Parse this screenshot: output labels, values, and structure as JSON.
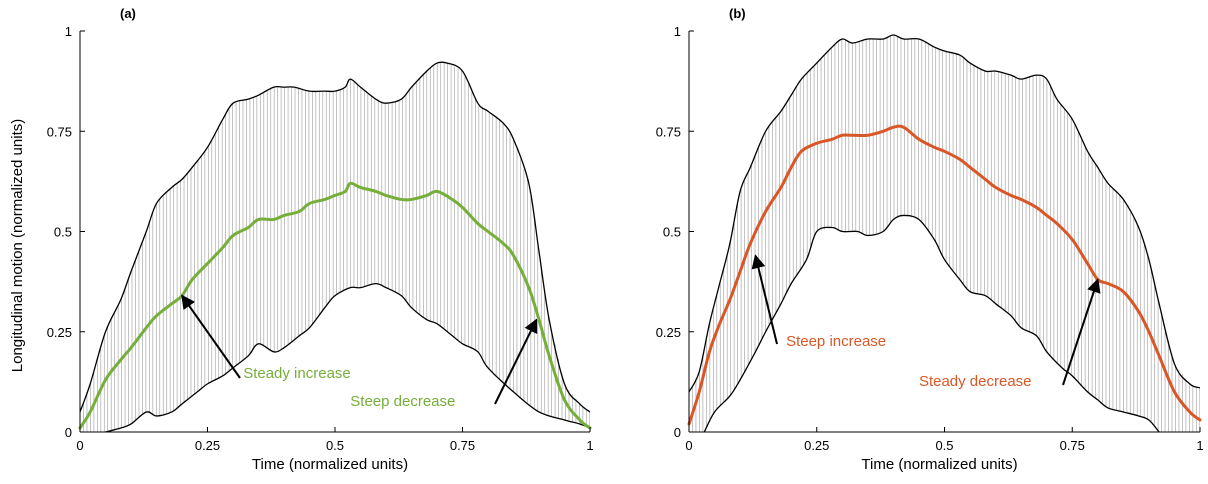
{
  "chart_data": [
    {
      "type": "line",
      "panel_label": "(a)",
      "xlabel": "Time (normalized units)",
      "ylabel": "Longitudinal motion (normalized units)",
      "xlim": [
        0,
        1
      ],
      "ylim": [
        0,
        1
      ],
      "xticks": [
        0,
        0.25,
        0.5,
        0.75,
        1
      ],
      "xtick_labels": [
        "0",
        "0.25",
        "0.5",
        "0.75",
        "1"
      ],
      "yticks": [
        0,
        0.25,
        0.5,
        0.75,
        1
      ],
      "ytick_labels": [
        "0",
        "0.25",
        "0.5",
        "0.75",
        "1"
      ],
      "line_color": "#76ae3a",
      "upper_bound": {
        "x": [
          0,
          0.02,
          0.05,
          0.08,
          0.1,
          0.13,
          0.15,
          0.18,
          0.2,
          0.22,
          0.25,
          0.28,
          0.3,
          0.33,
          0.35,
          0.38,
          0.4,
          0.42,
          0.45,
          0.48,
          0.5,
          0.52,
          0.53,
          0.55,
          0.58,
          0.6,
          0.63,
          0.65,
          0.68,
          0.7,
          0.72,
          0.75,
          0.78,
          0.8,
          0.83,
          0.85,
          0.88,
          0.9,
          0.92,
          0.95,
          0.98,
          1.0
        ],
        "y": [
          0.05,
          0.12,
          0.25,
          0.33,
          0.4,
          0.5,
          0.57,
          0.61,
          0.63,
          0.66,
          0.71,
          0.78,
          0.82,
          0.83,
          0.84,
          0.86,
          0.86,
          0.86,
          0.85,
          0.85,
          0.85,
          0.86,
          0.88,
          0.86,
          0.83,
          0.82,
          0.83,
          0.86,
          0.9,
          0.92,
          0.92,
          0.9,
          0.82,
          0.8,
          0.77,
          0.73,
          0.62,
          0.45,
          0.28,
          0.12,
          0.07,
          0.05
        ]
      },
      "lower_bound": {
        "x": [
          0.05,
          0.08,
          0.1,
          0.13,
          0.15,
          0.18,
          0.2,
          0.23,
          0.25,
          0.28,
          0.3,
          0.33,
          0.35,
          0.38,
          0.4,
          0.43,
          0.45,
          0.48,
          0.5,
          0.53,
          0.55,
          0.58,
          0.6,
          0.63,
          0.65,
          0.68,
          0.7,
          0.73,
          0.75,
          0.78,
          0.8,
          0.85,
          0.9,
          0.95,
          0.98,
          1.0
        ],
        "y": [
          0.0,
          0.01,
          0.02,
          0.05,
          0.04,
          0.05,
          0.07,
          0.1,
          0.12,
          0.14,
          0.16,
          0.19,
          0.22,
          0.2,
          0.21,
          0.24,
          0.26,
          0.31,
          0.34,
          0.36,
          0.36,
          0.37,
          0.36,
          0.34,
          0.31,
          0.28,
          0.27,
          0.24,
          0.22,
          0.2,
          0.16,
          0.1,
          0.05,
          0.03,
          0.02,
          0.01
        ]
      },
      "mean_line": {
        "x": [
          0,
          0.02,
          0.05,
          0.08,
          0.1,
          0.13,
          0.15,
          0.18,
          0.2,
          0.22,
          0.25,
          0.28,
          0.3,
          0.33,
          0.35,
          0.38,
          0.4,
          0.43,
          0.45,
          0.48,
          0.5,
          0.52,
          0.53,
          0.55,
          0.58,
          0.6,
          0.63,
          0.65,
          0.68,
          0.7,
          0.73,
          0.75,
          0.78,
          0.8,
          0.83,
          0.85,
          0.88,
          0.9,
          0.92,
          0.95,
          0.98,
          1.0
        ],
        "y": [
          0.01,
          0.05,
          0.13,
          0.18,
          0.21,
          0.26,
          0.29,
          0.32,
          0.34,
          0.38,
          0.42,
          0.46,
          0.49,
          0.51,
          0.53,
          0.53,
          0.54,
          0.55,
          0.57,
          0.58,
          0.59,
          0.6,
          0.62,
          0.61,
          0.6,
          0.59,
          0.58,
          0.58,
          0.59,
          0.6,
          0.58,
          0.56,
          0.52,
          0.5,
          0.47,
          0.44,
          0.36,
          0.28,
          0.19,
          0.08,
          0.03,
          0.01
        ]
      },
      "annotations": [
        {
          "text": "Steady increase",
          "text_x": 0.32,
          "text_y": 0.135,
          "point_x": 0.2,
          "point_y": 0.34,
          "color": "#76ae3a"
        },
        {
          "text": "Steep decrease",
          "text_x": 0.53,
          "text_y": 0.065,
          "point_x": 0.895,
          "point_y": 0.28,
          "color": "#76ae3a"
        }
      ]
    },
    {
      "type": "line",
      "panel_label": "(b)",
      "xlabel": "Time (normalized units)",
      "ylabel": "",
      "xlim": [
        0,
        1
      ],
      "ylim": [
        0,
        1
      ],
      "xticks": [
        0,
        0.25,
        0.5,
        0.75,
        1
      ],
      "xtick_labels": [
        "0",
        "0.25",
        "0.5",
        "0.75",
        "1"
      ],
      "yticks": [
        0,
        0.25,
        0.5,
        0.75,
        1
      ],
      "ytick_labels": [
        "0",
        "0.25",
        "0.5",
        "0.75",
        "1"
      ],
      "line_color": "#d95726",
      "upper_bound": {
        "x": [
          0,
          0.02,
          0.04,
          0.06,
          0.08,
          0.1,
          0.12,
          0.15,
          0.18,
          0.2,
          0.22,
          0.25,
          0.28,
          0.3,
          0.32,
          0.35,
          0.38,
          0.4,
          0.42,
          0.45,
          0.48,
          0.5,
          0.53,
          0.55,
          0.58,
          0.6,
          0.63,
          0.65,
          0.68,
          0.7,
          0.72,
          0.75,
          0.78,
          0.8,
          0.82,
          0.85,
          0.88,
          0.9,
          0.92,
          0.95,
          0.98,
          1.0
        ],
        "y": [
          0.1,
          0.15,
          0.27,
          0.37,
          0.47,
          0.6,
          0.66,
          0.75,
          0.8,
          0.84,
          0.88,
          0.92,
          0.96,
          0.98,
          0.97,
          0.98,
          0.98,
          0.99,
          0.98,
          0.98,
          0.96,
          0.95,
          0.94,
          0.92,
          0.9,
          0.9,
          0.89,
          0.88,
          0.89,
          0.88,
          0.83,
          0.78,
          0.7,
          0.66,
          0.62,
          0.58,
          0.51,
          0.43,
          0.32,
          0.17,
          0.12,
          0.11
        ]
      },
      "lower_bound": {
        "x": [
          0.03,
          0.05,
          0.08,
          0.1,
          0.13,
          0.15,
          0.18,
          0.2,
          0.23,
          0.25,
          0.28,
          0.3,
          0.33,
          0.35,
          0.38,
          0.4,
          0.42,
          0.45,
          0.48,
          0.5,
          0.53,
          0.55,
          0.58,
          0.6,
          0.63,
          0.65,
          0.68,
          0.7,
          0.73,
          0.75,
          0.78,
          0.8,
          0.82,
          0.85,
          0.88,
          0.9,
          0.92
        ],
        "y": [
          0.0,
          0.05,
          0.09,
          0.13,
          0.2,
          0.25,
          0.32,
          0.37,
          0.43,
          0.5,
          0.51,
          0.5,
          0.5,
          0.49,
          0.5,
          0.53,
          0.54,
          0.53,
          0.48,
          0.43,
          0.38,
          0.35,
          0.34,
          0.32,
          0.29,
          0.26,
          0.24,
          0.2,
          0.16,
          0.14,
          0.1,
          0.08,
          0.06,
          0.05,
          0.04,
          0.03,
          0.0
        ]
      },
      "mean_line": {
        "x": [
          0,
          0.02,
          0.04,
          0.06,
          0.08,
          0.1,
          0.12,
          0.15,
          0.18,
          0.2,
          0.22,
          0.25,
          0.28,
          0.3,
          0.32,
          0.35,
          0.38,
          0.4,
          0.42,
          0.45,
          0.48,
          0.5,
          0.53,
          0.55,
          0.58,
          0.6,
          0.63,
          0.65,
          0.68,
          0.7,
          0.72,
          0.75,
          0.78,
          0.8,
          0.82,
          0.85,
          0.88,
          0.9,
          0.92,
          0.95,
          0.98,
          1.0
        ],
        "y": [
          0.02,
          0.1,
          0.2,
          0.27,
          0.33,
          0.4,
          0.47,
          0.55,
          0.61,
          0.66,
          0.7,
          0.72,
          0.73,
          0.74,
          0.74,
          0.74,
          0.75,
          0.76,
          0.76,
          0.73,
          0.71,
          0.7,
          0.68,
          0.66,
          0.63,
          0.61,
          0.59,
          0.58,
          0.56,
          0.54,
          0.52,
          0.48,
          0.42,
          0.38,
          0.37,
          0.35,
          0.3,
          0.25,
          0.19,
          0.1,
          0.05,
          0.03
        ]
      },
      "annotations": [
        {
          "text": "Steep increase",
          "text_x": 0.19,
          "text_y": 0.215,
          "point_x": 0.13,
          "point_y": 0.44,
          "color": "#d95726"
        },
        {
          "text": "Steady decrease",
          "text_x": 0.45,
          "text_y": 0.115,
          "point_x": 0.8,
          "point_y": 0.38,
          "color": "#d95726"
        }
      ]
    }
  ]
}
